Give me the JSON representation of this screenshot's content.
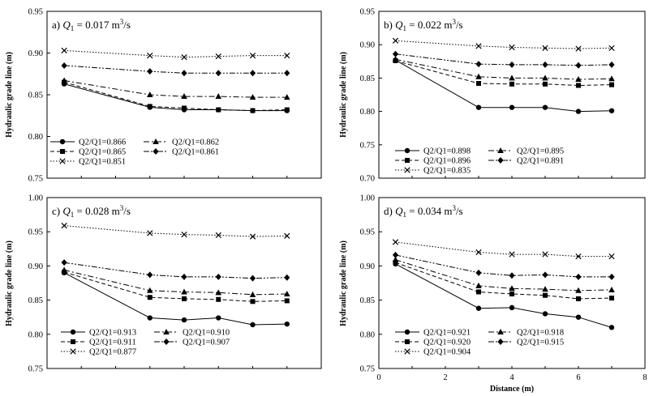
{
  "chart_data": [
    {
      "type": "line",
      "panel": "a)",
      "title_prefix": "a) ",
      "title_q": "Q",
      "title_sub": "1",
      "title_suffix": " = 0.017 m",
      "title_sup": "3",
      "title_unit": "/s",
      "ylabel": "Hydraulic grade line (m)",
      "xlabel": "",
      "ylim": [
        0.75,
        0.95
      ],
      "yticks": [
        "0.75",
        "0.80",
        "0.85",
        "0.90",
        "0.95"
      ],
      "xlim": [
        0,
        8
      ],
      "xticks": [],
      "x": [
        0.5,
        3.0,
        4.0,
        5.0,
        6.0,
        7.0
      ],
      "series": [
        {
          "name": "Q2/Q1=0.866",
          "marker": "circle",
          "dash": "solid",
          "values": [
            0.863,
            0.835,
            0.832,
            0.832,
            0.831,
            0.831
          ]
        },
        {
          "name": "Q2/Q1=0.862",
          "marker": "triangle",
          "dash": "dashdot",
          "values": [
            0.867,
            0.85,
            0.848,
            0.848,
            0.847,
            0.847
          ]
        },
        {
          "name": "Q2/Q1=0.865",
          "marker": "square",
          "dash": "dashed",
          "values": [
            0.865,
            0.836,
            0.834,
            0.832,
            0.831,
            0.832
          ]
        },
        {
          "name": "Q2/Q1=0.861",
          "marker": "diamond",
          "dash": "dashdotdot",
          "values": [
            0.885,
            0.878,
            0.876,
            0.876,
            0.876,
            0.876
          ]
        },
        {
          "name": "Q2/Q1=0.851",
          "marker": "x",
          "dash": "dotted",
          "values": [
            0.903,
            0.897,
            0.895,
            0.896,
            0.897,
            0.897
          ]
        }
      ]
    },
    {
      "type": "line",
      "panel": "b)",
      "title_prefix": "b) ",
      "title_q": "Q",
      "title_sub": "1",
      "title_suffix": " = 0.022 m",
      "title_sup": "3",
      "title_unit": "/s",
      "ylabel": "Hydraulic grade line (m)",
      "xlabel": "",
      "ylim": [
        0.7,
        0.95
      ],
      "yticks": [
        "0.70",
        "0.75",
        "0.80",
        "0.85",
        "0.90",
        "0.95"
      ],
      "xlim": [
        0,
        8
      ],
      "xticks": [],
      "x": [
        0.5,
        3.0,
        4.0,
        5.0,
        6.0,
        7.0
      ],
      "series": [
        {
          "name": "Q2/Q1=0.898",
          "marker": "circle",
          "dash": "solid",
          "values": [
            0.877,
            0.806,
            0.806,
            0.806,
            0.8,
            0.801
          ]
        },
        {
          "name": "Q2/Q1=0.895",
          "marker": "triangle",
          "dash": "dashdot",
          "values": [
            0.878,
            0.852,
            0.85,
            0.85,
            0.848,
            0.849
          ]
        },
        {
          "name": "Q2/Q1=0.896",
          "marker": "square",
          "dash": "dashed",
          "values": [
            0.876,
            0.842,
            0.841,
            0.841,
            0.839,
            0.84
          ]
        },
        {
          "name": "Q2/Q1=0.891",
          "marker": "diamond",
          "dash": "dashdotdot",
          "values": [
            0.886,
            0.871,
            0.87,
            0.87,
            0.869,
            0.87
          ]
        },
        {
          "name": "Q2/Q1=0.835",
          "marker": "x",
          "dash": "dotted",
          "values": [
            0.906,
            0.898,
            0.896,
            0.895,
            0.894,
            0.895
          ]
        }
      ]
    },
    {
      "type": "line",
      "panel": "c)",
      "title_prefix": "c) ",
      "title_q": "Q",
      "title_sub": "1",
      "title_suffix": " = 0.028 m",
      "title_sup": "3",
      "title_unit": "/s",
      "ylabel": "Hydraulic grade line (m)",
      "xlabel": "",
      "ylim": [
        0.75,
        1.0
      ],
      "yticks": [
        "0.75",
        "0.80",
        "0.85",
        "0.90",
        "0.95",
        "1.00"
      ],
      "xlim": [
        0,
        8
      ],
      "xticks": [],
      "x": [
        0.5,
        3.0,
        4.0,
        5.0,
        6.0,
        7.0
      ],
      "series": [
        {
          "name": "Q2/Q1=0.913",
          "marker": "circle",
          "dash": "solid",
          "values": [
            0.89,
            0.824,
            0.821,
            0.824,
            0.814,
            0.815
          ]
        },
        {
          "name": "Q2/Q1=0.910",
          "marker": "triangle",
          "dash": "dashdot",
          "values": [
            0.894,
            0.864,
            0.862,
            0.861,
            0.858,
            0.859
          ]
        },
        {
          "name": "Q2/Q1=0.911",
          "marker": "square",
          "dash": "dashed",
          "values": [
            0.891,
            0.854,
            0.852,
            0.851,
            0.848,
            0.849
          ]
        },
        {
          "name": "Q2/Q1=0.907",
          "marker": "diamond",
          "dash": "dashdotdot",
          "values": [
            0.905,
            0.887,
            0.884,
            0.884,
            0.882,
            0.883
          ]
        },
        {
          "name": "Q2/Q1=0.877",
          "marker": "x",
          "dash": "dotted",
          "values": [
            0.959,
            0.948,
            0.946,
            0.945,
            0.943,
            0.944
          ]
        }
      ]
    },
    {
      "type": "line",
      "panel": "d)",
      "title_prefix": "d) ",
      "title_q": "Q",
      "title_sub": "1",
      "title_suffix": " = 0.034 m",
      "title_sup": "3",
      "title_unit": "/s",
      "ylabel": "Hydraulic grade line (m)",
      "xlabel": "Distance (m)",
      "ylim": [
        0.75,
        1.0
      ],
      "yticks": [
        "0.75",
        "0.80",
        "0.85",
        "0.90",
        "0.95",
        "1.00"
      ],
      "xlim": [
        0,
        8
      ],
      "xticks": [
        "0",
        "2",
        "4",
        "6",
        "8"
      ],
      "x": [
        0.5,
        3.0,
        4.0,
        5.0,
        6.0,
        7.0
      ],
      "series": [
        {
          "name": "Q2/Q1=0.921",
          "marker": "circle",
          "dash": "solid",
          "values": [
            0.903,
            0.838,
            0.839,
            0.83,
            0.825,
            0.81
          ]
        },
        {
          "name": "Q2/Q1=0.918",
          "marker": "triangle",
          "dash": "dashdot",
          "values": [
            0.909,
            0.871,
            0.867,
            0.866,
            0.864,
            0.865
          ]
        },
        {
          "name": "Q2/Q1=0.920",
          "marker": "square",
          "dash": "dashed",
          "values": [
            0.905,
            0.862,
            0.859,
            0.857,
            0.852,
            0.853
          ]
        },
        {
          "name": "Q2/Q1=0.915",
          "marker": "diamond",
          "dash": "dashdotdot",
          "values": [
            0.916,
            0.89,
            0.886,
            0.887,
            0.884,
            0.884
          ]
        },
        {
          "name": "Q2/Q1=0.904",
          "marker": "x",
          "dash": "dotted",
          "values": [
            0.935,
            0.92,
            0.917,
            0.917,
            0.914,
            0.914
          ]
        }
      ]
    }
  ]
}
